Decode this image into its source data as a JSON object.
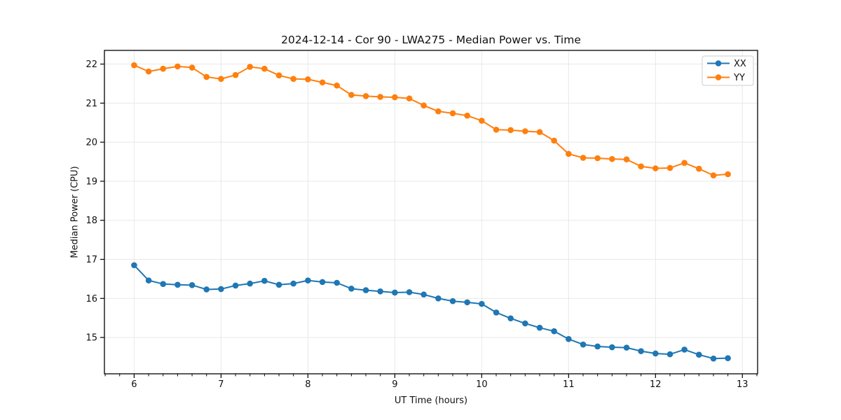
{
  "figure": {
    "title": "2024-12-14 - Cor 90 - LWA275 - Median Power vs. Time",
    "xlabel": "UT Time (hours)",
    "ylabel": "Median Power (CPU)"
  },
  "colors": {
    "grid": "#e8e8e8",
    "spine": "#000000",
    "text": "#111111",
    "series_xx": "#1f77b4",
    "series_yy": "#ff7f0e"
  },
  "chart_data": {
    "type": "line",
    "title": "2024-12-14 - Cor 90 - LWA275 - Median Power vs. Time",
    "xlabel": "UT Time (hours)",
    "ylabel": "Median Power (CPU)",
    "grid": true,
    "legend_position": "upper right",
    "marker": "circle",
    "xlim": [
      5.658,
      13.175
    ],
    "ylim": [
      14.07,
      22.35
    ],
    "xticks": [
      6,
      7,
      8,
      9,
      10,
      11,
      12,
      13
    ],
    "yticks": [
      15,
      16,
      17,
      18,
      19,
      20,
      21,
      22
    ],
    "x_minor_step_hours": 0.1667,
    "x": [
      6.0,
      6.167,
      6.333,
      6.5,
      6.667,
      6.833,
      7.0,
      7.167,
      7.333,
      7.5,
      7.667,
      7.833,
      8.0,
      8.167,
      8.333,
      8.5,
      8.667,
      8.833,
      9.0,
      9.167,
      9.333,
      9.5,
      9.667,
      9.833,
      10.0,
      10.167,
      10.333,
      10.5,
      10.667,
      10.833,
      11.0,
      11.167,
      11.333,
      11.5,
      11.667,
      11.833,
      12.0,
      12.167,
      12.333,
      12.5,
      12.667,
      12.833
    ],
    "series": [
      {
        "name": "XX",
        "color": "#1f77b4",
        "values": [
          16.85,
          16.46,
          16.37,
          16.35,
          16.34,
          16.23,
          16.24,
          16.33,
          16.38,
          16.45,
          16.35,
          16.38,
          16.46,
          16.42,
          16.4,
          16.25,
          16.21,
          16.18,
          16.15,
          16.16,
          16.1,
          16.0,
          15.93,
          15.9,
          15.86,
          15.64,
          15.49,
          15.36,
          15.25,
          15.16,
          14.96,
          14.82,
          14.77,
          14.75,
          14.74,
          14.65,
          14.59,
          14.57,
          14.69,
          14.56,
          14.46,
          14.47
        ]
      },
      {
        "name": "YY",
        "color": "#ff7f0e",
        "values": [
          21.97,
          21.81,
          21.88,
          21.94,
          21.91,
          21.67,
          21.62,
          21.72,
          21.93,
          21.88,
          21.71,
          21.62,
          21.61,
          21.53,
          21.45,
          21.21,
          21.18,
          21.16,
          21.15,
          21.12,
          20.94,
          20.79,
          20.74,
          20.68,
          20.55,
          20.32,
          20.31,
          20.28,
          20.26,
          20.04,
          19.7,
          19.6,
          19.59,
          19.57,
          19.56,
          19.38,
          19.33,
          19.34,
          19.47,
          19.32,
          19.15,
          19.18
        ]
      }
    ]
  }
}
